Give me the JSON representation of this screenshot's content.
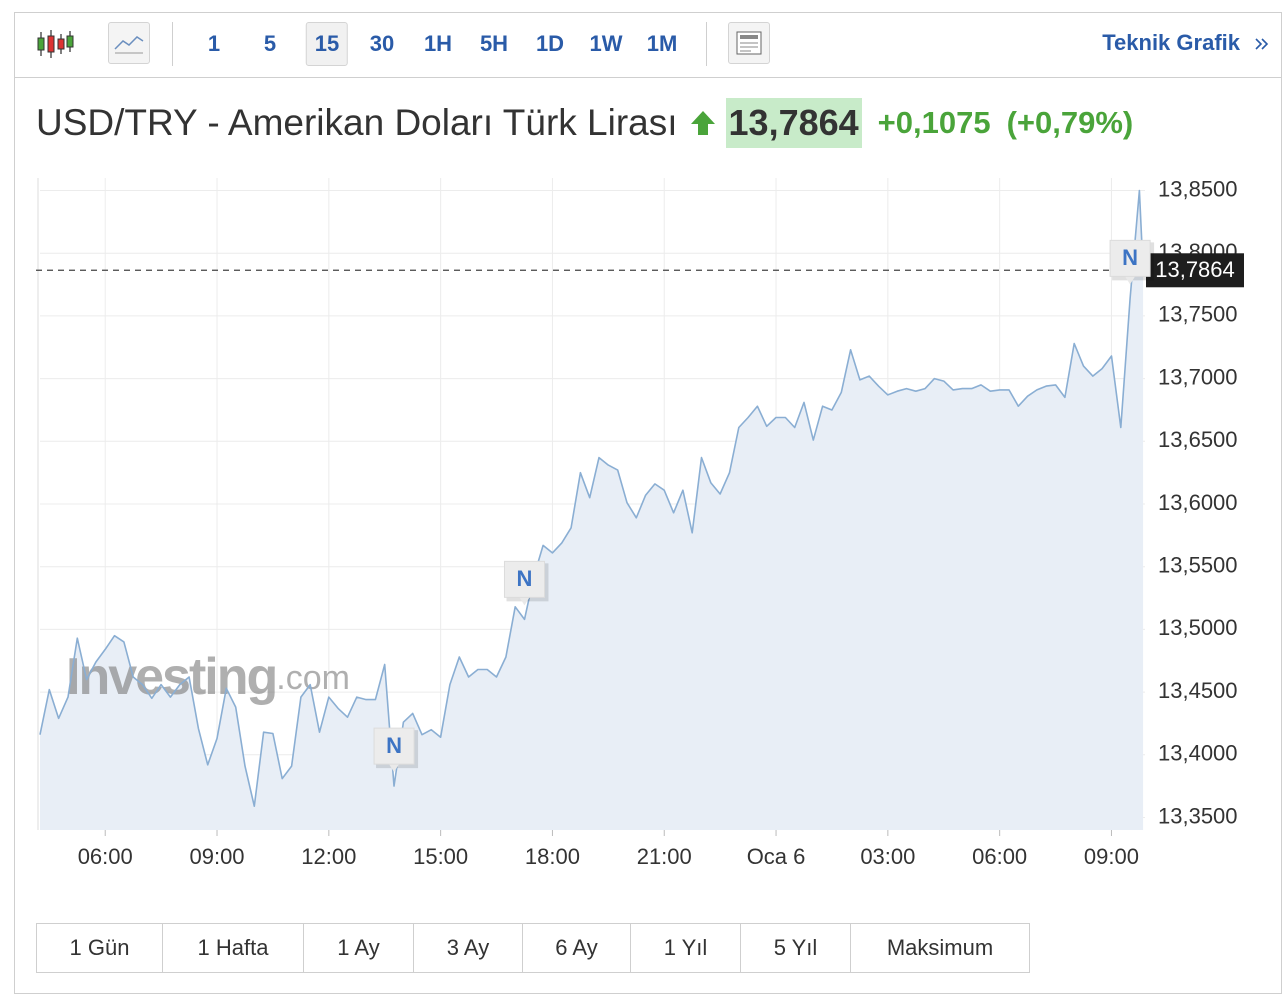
{
  "toolbar": {
    "intervals": [
      "1",
      "5",
      "15",
      "30",
      "1H",
      "5H",
      "1D",
      "1W",
      "1M"
    ],
    "active_interval": 2,
    "link": "Teknik Grafik"
  },
  "header": {
    "title": "USD/TRY - Amerikan Doları Türk Lirası",
    "price": "13,7864",
    "change": "+0,1075",
    "change_percent": "(+0,79%)"
  },
  "watermark": [
    "Investing",
    ".com"
  ],
  "chart_data": {
    "type": "area",
    "color": "#8aaed3",
    "fill": "#e8eef6",
    "grid": true,
    "x": [
      4.25,
      4.5,
      4.75,
      5.0,
      5.25,
      5.5,
      5.75,
      6.0,
      6.25,
      6.5,
      6.75,
      7.0,
      7.25,
      7.5,
      7.75,
      8.0,
      8.25,
      8.5,
      8.75,
      9.0,
      9.25,
      9.5,
      9.75,
      10.0,
      10.25,
      10.5,
      10.75,
      11.0,
      11.25,
      11.5,
      11.75,
      12.0,
      12.25,
      12.5,
      12.75,
      13.0,
      13.25,
      13.5,
      13.75,
      14.0,
      14.25,
      14.5,
      14.75,
      15.0,
      15.25,
      15.5,
      15.75,
      16.0,
      16.25,
      16.5,
      16.75,
      17.0,
      17.25,
      17.5,
      17.75,
      18.0,
      18.25,
      18.5,
      18.75,
      19.0,
      19.25,
      19.5,
      19.75,
      20.0,
      20.25,
      20.5,
      20.75,
      21.0,
      21.25,
      21.5,
      21.75,
      22.0,
      22.25,
      22.5,
      22.75,
      23.0,
      23.25,
      23.5,
      23.75,
      24.0,
      24.25,
      24.5,
      24.75,
      25.0,
      25.25,
      25.5,
      25.75,
      26.0,
      26.25,
      26.5,
      26.75,
      27.0,
      27.25,
      27.5,
      27.75,
      28.0,
      28.25,
      28.5,
      28.75,
      29.0,
      29.25,
      29.5,
      29.75,
      30.0,
      30.25,
      30.5,
      30.75,
      31.0,
      31.25,
      31.5,
      31.75,
      32.0,
      32.25,
      32.5,
      32.75,
      33.0,
      33.25,
      33.5,
      33.75,
      33.85
    ],
    "values": [
      13.416,
      13.452,
      13.429,
      13.446,
      13.493,
      13.46,
      13.474,
      13.484,
      13.495,
      13.49,
      13.462,
      13.456,
      13.445,
      13.456,
      13.446,
      13.456,
      13.462,
      13.421,
      13.392,
      13.413,
      13.453,
      13.438,
      13.391,
      13.359,
      13.418,
      13.417,
      13.381,
      13.391,
      13.446,
      13.456,
      13.418,
      13.446,
      13.437,
      13.43,
      13.446,
      13.444,
      13.444,
      13.472,
      13.375,
      13.426,
      13.433,
      13.416,
      13.42,
      13.414,
      13.456,
      13.478,
      13.462,
      13.468,
      13.468,
      13.462,
      13.478,
      13.518,
      13.508,
      13.542,
      13.567,
      13.561,
      13.569,
      13.581,
      13.625,
      13.605,
      13.637,
      13.631,
      13.627,
      13.601,
      13.589,
      13.607,
      13.616,
      13.611,
      13.593,
      13.611,
      13.577,
      13.637,
      13.617,
      13.608,
      13.625,
      13.661,
      13.669,
      13.678,
      13.662,
      13.669,
      13.669,
      13.661,
      13.681,
      13.651,
      13.678,
      13.675,
      13.689,
      13.723,
      13.699,
      13.702,
      13.694,
      13.687,
      13.69,
      13.692,
      13.69,
      13.692,
      13.7,
      13.698,
      13.691,
      13.692,
      13.692,
      13.695,
      13.69,
      13.691,
      13.691,
      13.678,
      13.686,
      13.691,
      13.694,
      13.695,
      13.685,
      13.728,
      13.71,
      13.702,
      13.708,
      13.718,
      13.661,
      13.764,
      13.85,
      13.7864
    ],
    "xlim": [
      4.25,
      33.9
    ],
    "ylim": [
      13.34,
      13.86
    ],
    "xticks": [
      {
        "value": 6,
        "label": "06:00"
      },
      {
        "value": 9,
        "label": "09:00"
      },
      {
        "value": 12,
        "label": "12:00"
      },
      {
        "value": 15,
        "label": "15:00"
      },
      {
        "value": 18,
        "label": "18:00"
      },
      {
        "value": 21,
        "label": "21:00"
      },
      {
        "value": 24,
        "label": "Oca 6"
      },
      {
        "value": 27,
        "label": "03:00"
      },
      {
        "value": 30,
        "label": "06:00"
      },
      {
        "value": 33,
        "label": "09:00"
      }
    ],
    "yticks": [
      {
        "value": 13.35,
        "label": "13,3500"
      },
      {
        "value": 13.4,
        "label": "13,4000"
      },
      {
        "value": 13.45,
        "label": "13,4500"
      },
      {
        "value": 13.5,
        "label": "13,5000"
      },
      {
        "value": 13.55,
        "label": "13,5500"
      },
      {
        "value": 13.6,
        "label": "13,6000"
      },
      {
        "value": 13.65,
        "label": "13,6500"
      },
      {
        "value": 13.7,
        "label": "13,7000"
      },
      {
        "value": 13.75,
        "label": "13,7500"
      },
      {
        "value": 13.8,
        "label": "13,8000"
      },
      {
        "value": 13.85,
        "label": "13,8500"
      }
    ],
    "current_price": {
      "value": 13.7864,
      "label": "13,7864"
    },
    "annotations": [
      {
        "x": 13.75,
        "label": "N"
      },
      {
        "x": 17.25,
        "label": "N"
      },
      {
        "x": 33.5,
        "label": "N"
      }
    ]
  },
  "ranges": [
    "1 Gün",
    "1 Hafta",
    "1 Ay",
    "3 Ay",
    "6 Ay",
    "1 Yıl",
    "5 Yıl",
    "Maksimum"
  ]
}
